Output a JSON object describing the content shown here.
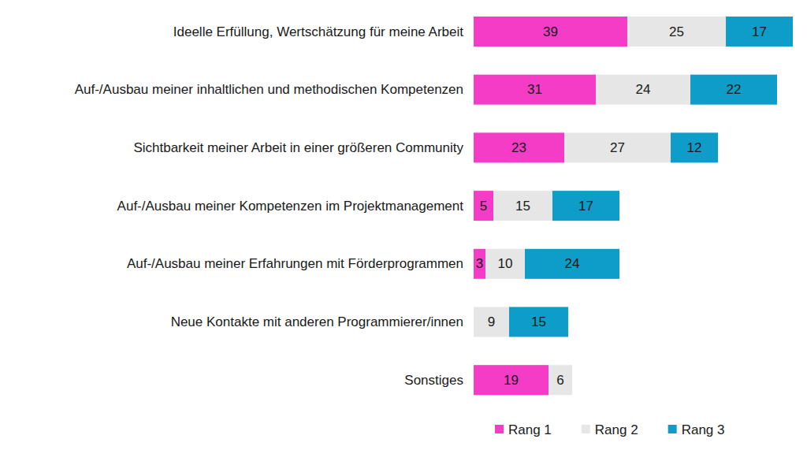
{
  "chart_data": {
    "type": "bar",
    "orientation": "horizontal",
    "stacked": true,
    "data_labels": true,
    "tick_labels": "y",
    "legend": "bottom",
    "grid": false,
    "xlim": [
      0,
      84
    ],
    "categories": [
      "Ideelle Erfüllung, Wertschätzung für meine Arbeit",
      "Auf-/Ausbau meiner inhaltlichen und methodischen Kompetenzen",
      "Sichtbarkeit meiner Arbeit in einer größeren Community",
      "Auf-/Ausbau meiner Kompetenzen im Projektmanagement",
      "Auf-/Ausbau meiner Erfahrungen mit Förderprogrammen",
      "Neue Kontakte mit anderen Programmierer/innen",
      "Sonstiges"
    ],
    "series": [
      {
        "name": "Rang 1",
        "color": "#f53cc6",
        "values": [
          39,
          31,
          23,
          5,
          3,
          null,
          19
        ]
      },
      {
        "name": "Rang 2",
        "color": "#e6e6e6",
        "values": [
          25,
          24,
          27,
          15,
          10,
          9,
          6
        ]
      },
      {
        "name": "Rang 3",
        "color": "#0e9cc9",
        "values": [
          17,
          22,
          12,
          17,
          24,
          15,
          null
        ]
      }
    ]
  }
}
